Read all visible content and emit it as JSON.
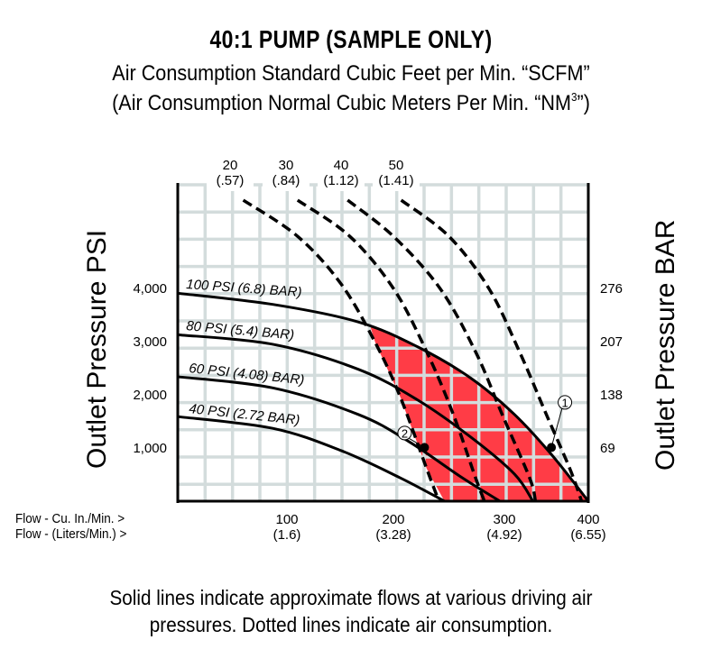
{
  "chart_data": {
    "type": "line",
    "title": "40:1 PUMP (SAMPLE ONLY)",
    "subtitle_line1": "Air Consumption Standard Cubic Feet per Min. “SCFM”",
    "subtitle_line2_prefix": "(Air Consumption Normal Cubic Meters Per Min. “NM",
    "subtitle_line2_sup": "3",
    "subtitle_line2_suffix": "”)",
    "ylabel_left": "Outlet Pressure PSI",
    "ylabel_right": "Outlet Pressure BAR",
    "xlabel_row1": "Flow - Cu. In./Min. >",
    "xlabel_row2": "Flow - (Liters/Min.) >",
    "x_ticks": [
      {
        "value": 100,
        "label": "100",
        "sublabel": "(1.6)"
      },
      {
        "value": 200,
        "label": "200",
        "sublabel": "(3.28)"
      },
      {
        "value": 300,
        "label": "300",
        "sublabel": "(4.92)"
      },
      {
        "value": 400,
        "label": "400",
        "sublabel": "(6.55)"
      }
    ],
    "y_ticks_left": [
      {
        "value": 4000,
        "label": "4,000"
      },
      {
        "value": 3000,
        "label": "3,000"
      },
      {
        "value": 2000,
        "label": "2,000"
      },
      {
        "value": 1000,
        "label": "1,000"
      }
    ],
    "y_ticks_right": [
      {
        "value": 4000,
        "label": "276"
      },
      {
        "value": 3000,
        "label": "207"
      },
      {
        "value": 2000,
        "label": "138"
      },
      {
        "value": 1000,
        "label": "69"
      }
    ],
    "xlim": [
      0,
      400
    ],
    "ylim": [
      0,
      5950
    ],
    "grid": true,
    "series": [
      {
        "name": "100 PSI (6.8) BAR)",
        "style": "solid",
        "x": [
          0,
          87,
          167,
          222,
          270,
          312,
          357,
          400
        ],
        "y": [
          3910,
          3700,
          3370,
          2900,
          2310,
          1630,
          860,
          0
        ]
      },
      {
        "name": "80 PSI (5.4) BAR)",
        "style": "solid",
        "x": [
          0,
          87,
          167,
          222,
          270,
          312,
          334
        ],
        "y": [
          3130,
          2950,
          2480,
          1900,
          1200,
          510,
          0
        ]
      },
      {
        "name": "60 PSI (4.08) BAR)",
        "style": "solid",
        "x": [
          0,
          87,
          167,
          214,
          262,
          296
        ],
        "y": [
          2340,
          2130,
          1630,
          1120,
          440,
          0
        ]
      },
      {
        "name": "40 PSI (2.72 BAR)",
        "style": "solid",
        "x": [
          0,
          87,
          151,
          206,
          246
        ],
        "y": [
          1590,
          1370,
          950,
          440,
          0
        ]
      },
      {
        "name": "20",
        "sublabel": "(.57)",
        "style": "dashed",
        "x": [
          60,
          110,
          151,
          183,
          206,
          230,
          241
        ],
        "y": [
          5660,
          4980,
          4080,
          2980,
          1970,
          610,
          0
        ]
      },
      {
        "name": "30",
        "sublabel": "(.84)",
        "style": "dashed",
        "x": [
          110,
          159,
          200,
          230,
          254,
          274,
          282
        ],
        "y": [
          5660,
          4980,
          4000,
          2810,
          1630,
          440,
          0
        ]
      },
      {
        "name": "40",
        "sublabel": "(1.12)",
        "style": "dashed",
        "x": [
          157,
          200,
          242,
          274,
          298,
          330,
          337
        ],
        "y": [
          5660,
          4980,
          4000,
          2810,
          1630,
          440,
          0
        ]
      },
      {
        "name": "50",
        "sublabel": "(1.41)",
        "style": "dashed",
        "x": [
          207,
          250,
          286,
          318,
          350,
          378,
          392
        ],
        "y": [
          5660,
          4980,
          4000,
          2810,
          1630,
          610,
          0
        ]
      }
    ],
    "shaded_region": {
      "color": "#ff3c46",
      "description": "operating region",
      "x": [
        178,
        222,
        270,
        312,
        357,
        400,
        246,
        230,
        206,
        183
      ],
      "y": [
        3300,
        2900,
        2310,
        1630,
        860,
        0,
        0,
        610,
        1970,
        2980
      ]
    },
    "markers": [
      {
        "label": "1",
        "x": 356,
        "y": 1010
      },
      {
        "label": "2",
        "x": 228,
        "y": 1010
      }
    ]
  },
  "footer": {
    "line1": "Solid lines indicate approximate flows at various driving air",
    "line2": "pressures. Dotted lines indicate air consumption."
  },
  "colors": {
    "grid": "#d3dcdc",
    "fill": "#ff3c46",
    "ink": "#000000"
  }
}
